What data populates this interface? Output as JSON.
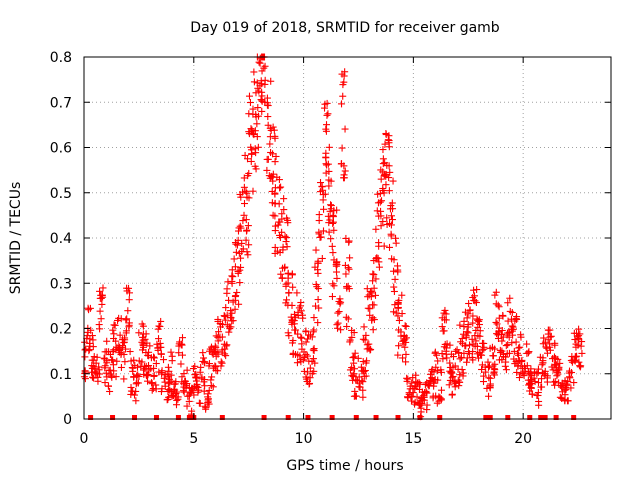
{
  "chart_data": {
    "type": "scatter",
    "title": "Day 019 of 2018, SRMTID for receiver gamb",
    "xlabel": "GPS time / hours",
    "ylabel": "SRMTID / TECUs",
    "xlim": [
      0,
      24
    ],
    "ylim": [
      0,
      0.8
    ],
    "xticks": [
      0,
      5,
      10,
      15,
      20
    ],
    "yticks": [
      0,
      0.1,
      0.2,
      0.3,
      0.4,
      0.5,
      0.6,
      0.7,
      0.8
    ],
    "xtick_labels": [
      "0",
      "5",
      "10",
      "15",
      "20"
    ],
    "ytick_labels": [
      "0",
      "0.1",
      "0.2",
      "0.3",
      "0.4",
      "0.5",
      "0.6",
      "0.7",
      "0.8"
    ],
    "grid": true,
    "marker": "plus",
    "color": "#ff0000",
    "series": [
      {
        "name": "SRMTID",
        "x": [
          0.0,
          0.2,
          0.4,
          0.6,
          0.8,
          1.0,
          1.2,
          1.4,
          1.6,
          1.8,
          2.0,
          2.2,
          2.4,
          2.6,
          2.8,
          3.0,
          3.2,
          3.4,
          3.6,
          3.8,
          4.0,
          4.2,
          4.4,
          4.6,
          4.8,
          5.0,
          5.2,
          5.4,
          5.6,
          5.8,
          6.0,
          6.2,
          6.4,
          6.6,
          6.8,
          7.0,
          7.2,
          7.4,
          7.6,
          7.8,
          8.0,
          8.2,
          8.4,
          8.6,
          8.8,
          9.0,
          9.2,
          9.4,
          9.6,
          9.8,
          10.0,
          10.2,
          10.4,
          10.6,
          10.8,
          11.0,
          11.2,
          11.4,
          11.6,
          11.8,
          12.0,
          12.2,
          12.4,
          12.6,
          12.8,
          13.0,
          13.2,
          13.4,
          13.6,
          13.8,
          14.0,
          14.2,
          14.4,
          14.6,
          14.8,
          15.0,
          15.2,
          15.4,
          15.6,
          15.8,
          16.0,
          16.2,
          16.4,
          16.6,
          16.8,
          17.0,
          17.2,
          17.4,
          17.6,
          17.8,
          18.0,
          18.2,
          18.4,
          18.6,
          18.8,
          19.0,
          19.2,
          19.4,
          19.6,
          19.8,
          20.0,
          20.2,
          20.4,
          20.6,
          20.8,
          21.0,
          21.2,
          21.4,
          21.6,
          21.8,
          22.0,
          22.2,
          22.4,
          22.6
        ],
        "y": [
          0.12,
          0.2,
          0.14,
          0.1,
          0.23,
          0.13,
          0.11,
          0.15,
          0.17,
          0.13,
          0.24,
          0.1,
          0.08,
          0.17,
          0.14,
          0.12,
          0.1,
          0.16,
          0.11,
          0.08,
          0.1,
          0.06,
          0.13,
          0.09,
          0.04,
          0.08,
          0.07,
          0.1,
          0.05,
          0.12,
          0.14,
          0.17,
          0.2,
          0.24,
          0.29,
          0.34,
          0.42,
          0.47,
          0.6,
          0.66,
          0.72,
          0.8,
          0.64,
          0.55,
          0.47,
          0.42,
          0.35,
          0.27,
          0.22,
          0.19,
          0.16,
          0.13,
          0.17,
          0.3,
          0.45,
          0.6,
          0.5,
          0.38,
          0.28,
          0.65,
          0.3,
          0.14,
          0.1,
          0.08,
          0.15,
          0.22,
          0.28,
          0.4,
          0.49,
          0.54,
          0.47,
          0.3,
          0.2,
          0.16,
          0.08,
          0.07,
          0.06,
          0.03,
          0.05,
          0.07,
          0.1,
          0.07,
          0.18,
          0.12,
          0.1,
          0.12,
          0.15,
          0.18,
          0.2,
          0.22,
          0.16,
          0.12,
          0.09,
          0.12,
          0.24,
          0.18,
          0.15,
          0.2,
          0.17,
          0.14,
          0.1,
          0.12,
          0.08,
          0.07,
          0.1,
          0.13,
          0.15,
          0.12,
          0.1,
          0.08,
          0.07,
          0.1,
          0.14,
          0.16
        ],
        "spread": [
          0.05,
          0.06,
          0.05,
          0.04,
          0.06,
          0.05,
          0.05,
          0.06,
          0.06,
          0.05,
          0.06,
          0.05,
          0.04,
          0.06,
          0.05,
          0.05,
          0.04,
          0.06,
          0.05,
          0.04,
          0.05,
          0.03,
          0.05,
          0.04,
          0.03,
          0.04,
          0.04,
          0.05,
          0.03,
          0.05,
          0.05,
          0.06,
          0.06,
          0.08,
          0.08,
          0.09,
          0.1,
          0.12,
          0.12,
          0.12,
          0.12,
          0.12,
          0.12,
          0.12,
          0.12,
          0.11,
          0.1,
          0.09,
          0.08,
          0.07,
          0.07,
          0.06,
          0.07,
          0.09,
          0.1,
          0.12,
          0.12,
          0.11,
          0.09,
          0.12,
          0.1,
          0.06,
          0.05,
          0.04,
          0.06,
          0.07,
          0.09,
          0.11,
          0.12,
          0.12,
          0.12,
          0.1,
          0.08,
          0.06,
          0.04,
          0.04,
          0.03,
          0.03,
          0.03,
          0.04,
          0.05,
          0.04,
          0.06,
          0.05,
          0.05,
          0.05,
          0.06,
          0.06,
          0.07,
          0.07,
          0.06,
          0.05,
          0.04,
          0.05,
          0.07,
          0.06,
          0.05,
          0.07,
          0.06,
          0.05,
          0.04,
          0.05,
          0.04,
          0.04,
          0.04,
          0.05,
          0.05,
          0.05,
          0.04,
          0.04,
          0.03,
          0.04,
          0.05,
          0.05
        ]
      }
    ],
    "zero_hours": [
      0.3,
      1.3,
      2.3,
      3.3,
      4.3,
      4.8,
      5.0,
      6.3,
      8.2,
      9.3,
      10.2,
      11.3,
      12.4,
      13.3,
      14.3,
      15.3,
      16.2,
      18.3,
      18.5,
      19.3,
      20.3,
      20.8,
      21.0,
      21.5,
      22.3
    ]
  }
}
